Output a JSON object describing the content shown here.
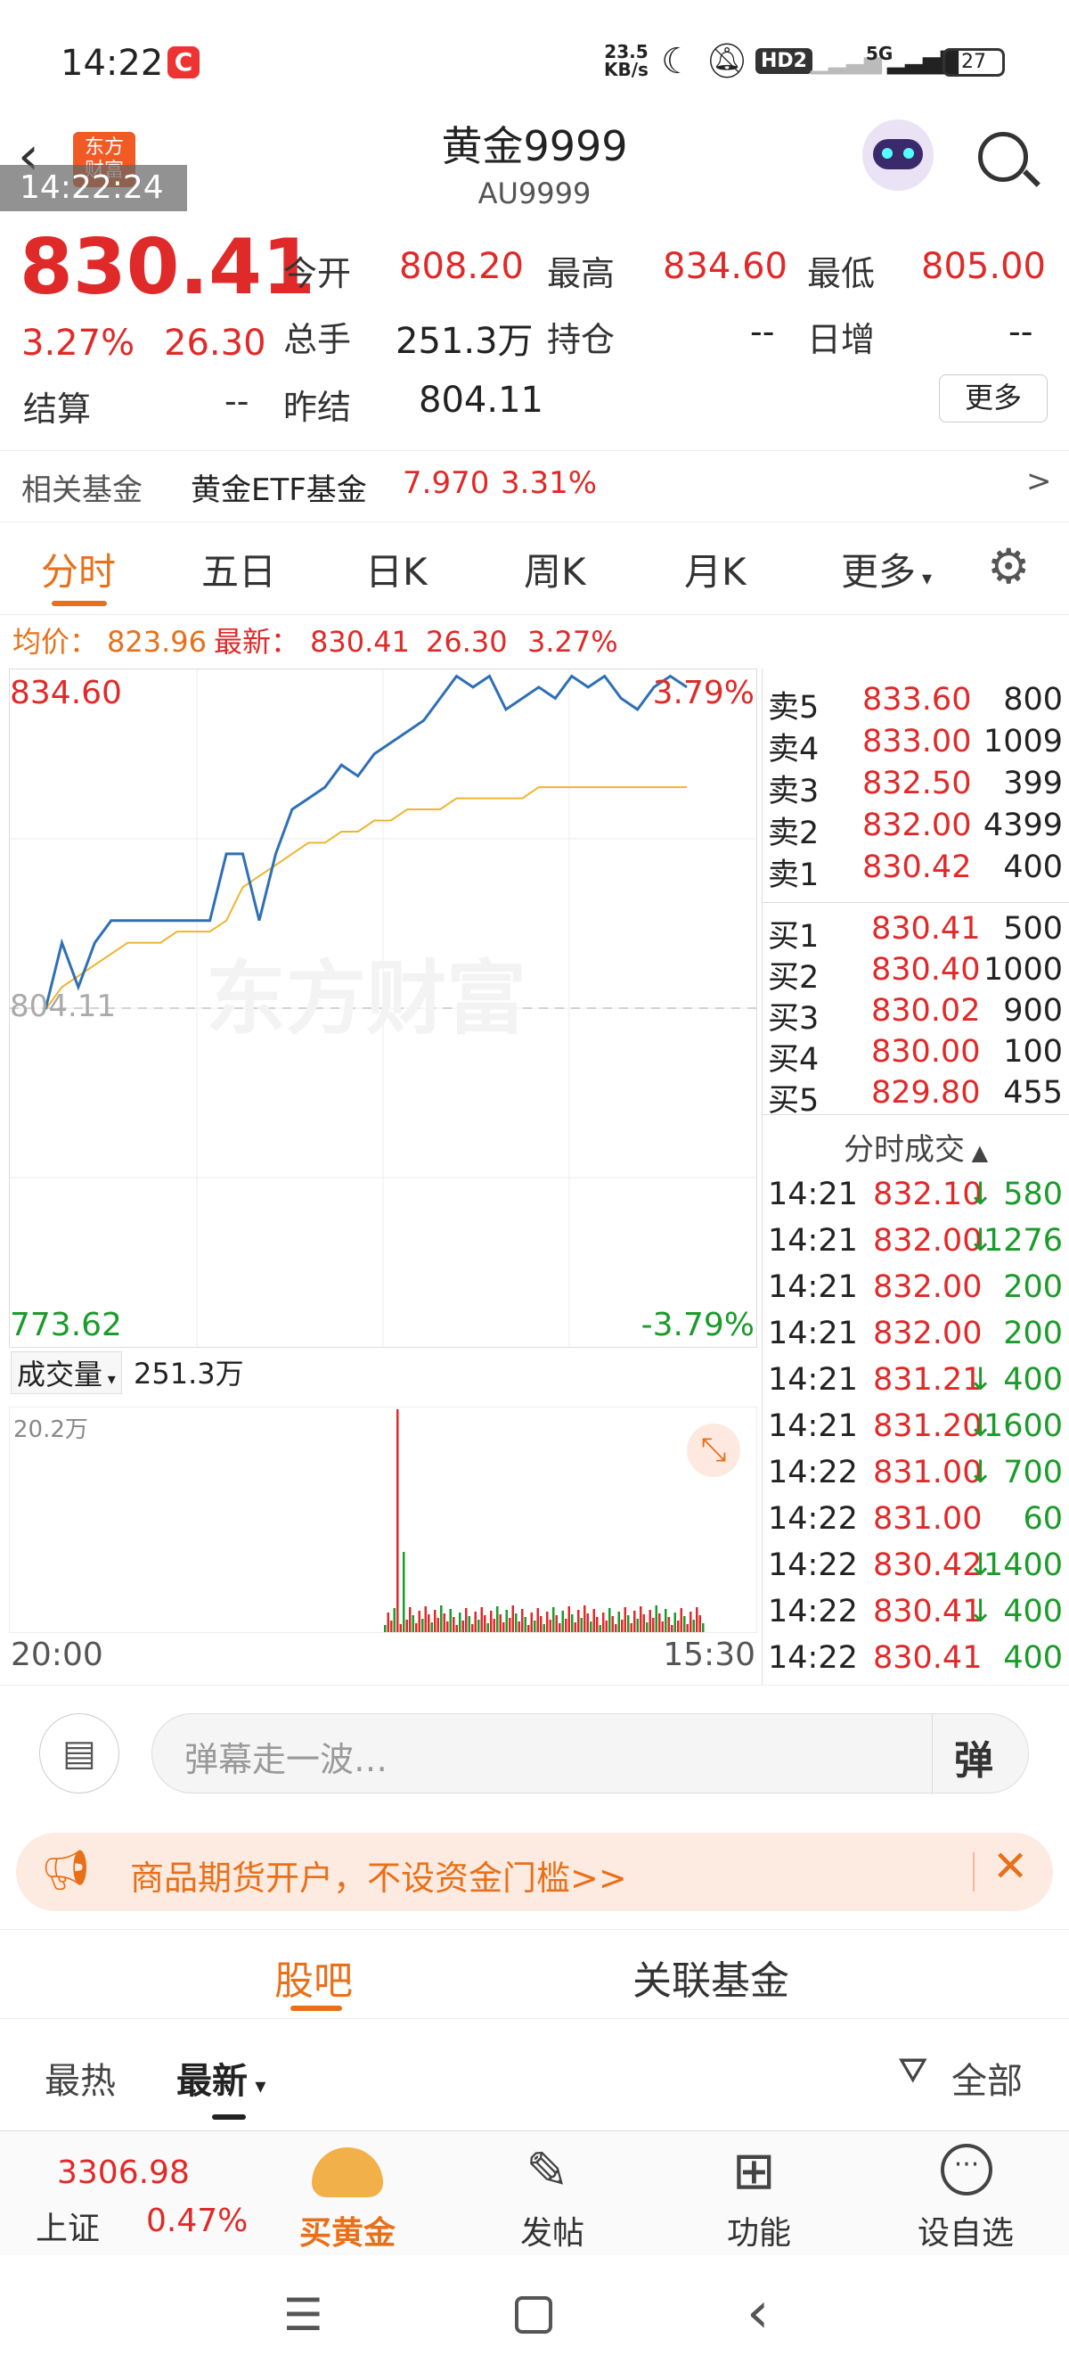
{
  "status": {
    "time": "14:22",
    "app_badge": "C",
    "net_speed_top": "23.5",
    "net_speed_bottom": "KB/s",
    "hd": "HD2",
    "signal": "5G",
    "battery": "27"
  },
  "header": {
    "title": "黄金9999",
    "code": "AU9999",
    "logo_line1": "东方",
    "logo_line2": "财富",
    "timestamp": "14:22:24"
  },
  "quote": {
    "price": "830.41",
    "pct": "3.27%",
    "chg": "26.30",
    "open_label": "今开",
    "open": "808.20",
    "high_label": "最高",
    "high": "834.60",
    "low_label": "最低",
    "low": "805.00",
    "volume_label": "总手",
    "volume": "251.3万",
    "oi_label": "持仓",
    "oi": "--",
    "inc_label": "日增",
    "inc": "--",
    "settle_label": "结算",
    "settle": "--",
    "prev_settle_label": "昨结",
    "prev_settle": "804.11",
    "more": "更多"
  },
  "fund": {
    "label": "相关基金",
    "name": "黄金ETF基金",
    "price": "7.970",
    "pct": "3.31%",
    "arrow": ">"
  },
  "tabs": [
    "分时",
    "五日",
    "日K",
    "周K",
    "月K",
    "更多"
  ],
  "avgline": {
    "avg_label": "均价：",
    "avg": "823.96",
    "latest_label": "最新：",
    "latest": "830.41",
    "chg": "26.30",
    "pct": "3.27%"
  },
  "chart": {
    "ymax": "834.60",
    "ymid": "804.11",
    "ymin": "773.62",
    "pct_top": "3.79%",
    "pct_bottom": "-3.79%",
    "watermark": "东方财富",
    "t_start": "20:00",
    "t_end": "15:30",
    "vol_label": "成交量",
    "vol_total": "251.3万",
    "vol_max": "20.2万"
  },
  "chart_data": {
    "type": "line",
    "series": [
      {
        "values": [
          804,
          810,
          806,
          810,
          812,
          812,
          812,
          812,
          812,
          812,
          812,
          818,
          818,
          812,
          818,
          822,
          823,
          824,
          826,
          825,
          827,
          828,
          829,
          830,
          832,
          834,
          833,
          834,
          831,
          832,
          833,
          832,
          834,
          833,
          834,
          832,
          831,
          833,
          834,
          833
        ]
      },
      {
        "values": [
          804,
          806,
          807,
          808,
          809,
          810,
          810,
          810,
          811,
          811,
          811,
          812,
          815,
          816,
          817,
          818,
          819,
          819,
          820,
          820,
          821,
          821,
          822,
          822,
          822,
          823,
          823,
          823,
          823,
          823,
          824,
          824,
          824,
          824,
          824,
          824,
          824,
          824,
          824,
          824
        ]
      }
    ],
    "ylim": [
      773.62,
      834.6
    ]
  },
  "orderbook": {
    "asks": [
      {
        "l": "卖5",
        "p": "833.60",
        "v": "800"
      },
      {
        "l": "卖4",
        "p": "833.00",
        "v": "1009"
      },
      {
        "l": "卖3",
        "p": "832.50",
        "v": "399"
      },
      {
        "l": "卖2",
        "p": "832.00",
        "v": "4399"
      },
      {
        "l": "卖1",
        "p": "830.42",
        "v": "400"
      }
    ],
    "bids": [
      {
        "l": "买1",
        "p": "830.41",
        "v": "500"
      },
      {
        "l": "买2",
        "p": "830.40",
        "v": "1000"
      },
      {
        "l": "买3",
        "p": "830.02",
        "v": "900"
      },
      {
        "l": "买4",
        "p": "830.00",
        "v": "100"
      },
      {
        "l": "买5",
        "p": "829.80",
        "v": "455"
      }
    ]
  },
  "trades_title": "分时成交",
  "trades": [
    {
      "t": "14:21",
      "p": "832.10",
      "v": "580",
      "d": "↓"
    },
    {
      "t": "14:21",
      "p": "832.00",
      "v": "1276",
      "d": "↓"
    },
    {
      "t": "14:21",
      "p": "832.00",
      "v": "200",
      "d": ""
    },
    {
      "t": "14:21",
      "p": "832.00",
      "v": "200",
      "d": ""
    },
    {
      "t": "14:21",
      "p": "831.21",
      "v": "400",
      "d": "↓"
    },
    {
      "t": "14:21",
      "p": "831.20",
      "v": "1600",
      "d": "↓"
    },
    {
      "t": "14:22",
      "p": "831.00",
      "v": "700",
      "d": "↓"
    },
    {
      "t": "14:22",
      "p": "831.00",
      "v": "60",
      "d": ""
    },
    {
      "t": "14:22",
      "p": "830.42",
      "v": "1400",
      "d": "↓"
    },
    {
      "t": "14:22",
      "p": "830.41",
      "v": "400",
      "d": "↓"
    },
    {
      "t": "14:22",
      "p": "830.41",
      "v": "400",
      "d": ""
    }
  ],
  "comment": {
    "placeholder": "弹幕走一波…",
    "danmu": "弹"
  },
  "banner": {
    "text": "商品期货开户，不设资金门槛>>"
  },
  "subtabs": [
    "股吧",
    "关联基金"
  ],
  "sort": {
    "hot": "最热",
    "latest": "最新",
    "filter": "全部"
  },
  "footer": {
    "index_value": "3306.98",
    "index_name": "上证",
    "index_pct": "0.47%",
    "buy": "买黄金",
    "post": "发帖",
    "func": "功能",
    "watch": "设自选"
  }
}
